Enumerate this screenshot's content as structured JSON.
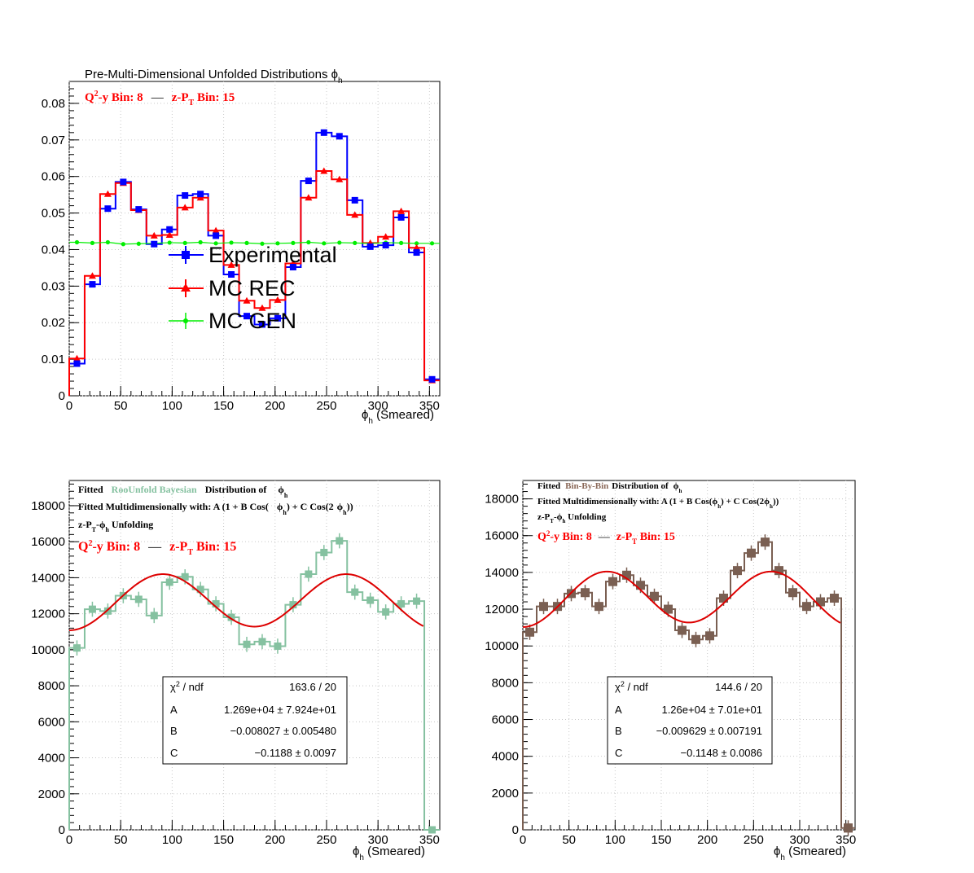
{
  "chart_data": [
    {
      "type": "line",
      "title": "Pre-Multi-Dimensional Unfolded Distributions ϕ",
      "title_sub": "h",
      "annotation": {
        "q2y": "Q",
        "q2y_sup": "2",
        "q2y_rest": "-y Bin: 8",
        "dash": "—",
        "zpt": "z-P",
        "zpt_sub": "T",
        "zpt_rest": " Bin: 15"
      },
      "xlabel": "ϕ",
      "xlabel_sub": "h",
      "xlabel_rest": " (Smeared)",
      "xlim": [
        0,
        360
      ],
      "ylim": [
        0,
        0.086
      ],
      "xticks": [
        "0",
        "50",
        "100",
        "150",
        "200",
        "250",
        "300",
        "350"
      ],
      "yticks": [
        "0",
        "0.01",
        "0.02",
        "0.03",
        "0.04",
        "0.05",
        "0.06",
        "0.07",
        "0.08"
      ],
      "ytick_values": [
        0,
        0.01,
        0.02,
        0.03,
        0.04,
        0.05,
        0.06,
        0.07,
        0.08
      ],
      "bin_edges": [
        0,
        15,
        30,
        45,
        60,
        75,
        90,
        105,
        120,
        135,
        150,
        165,
        180,
        195,
        210,
        225,
        240,
        255,
        270,
        285,
        300,
        315,
        330,
        345,
        360
      ],
      "series": [
        {
          "name": "Experimental",
          "color": "#0000ff",
          "marker": "square",
          "values": [
            0.0088,
            0.0305,
            0.0512,
            0.0585,
            0.051,
            0.0415,
            0.0455,
            0.0548,
            0.0552,
            0.0438,
            0.0332,
            0.0218,
            0.0195,
            0.0212,
            0.0352,
            0.0588,
            0.072,
            0.071,
            0.0535,
            0.0408,
            0.0412,
            0.0488,
            0.0392,
            0.0045
          ]
        },
        {
          "name": "MC REC",
          "color": "#ff0000",
          "marker": "triangle",
          "values": [
            0.0102,
            0.0328,
            0.0552,
            0.0582,
            0.0508,
            0.0438,
            0.044,
            0.0515,
            0.0542,
            0.0452,
            0.0358,
            0.026,
            0.024,
            0.0262,
            0.0362,
            0.0542,
            0.0615,
            0.0592,
            0.0495,
            0.0418,
            0.0435,
            0.0505,
            0.0405,
            0.0042
          ]
        },
        {
          "name": "MC GEN",
          "color": "#00ee00",
          "marker": "circle",
          "values": [
            0.042,
            0.0418,
            0.042,
            0.0415,
            0.0416,
            0.0417,
            0.0419,
            0.0418,
            0.042,
            0.0417,
            0.0419,
            0.0418,
            0.0416,
            0.0417,
            0.0418,
            0.042,
            0.0417,
            0.0419,
            0.0418,
            0.0417,
            0.0419,
            0.0418,
            0.0417,
            0.0417
          ]
        }
      ]
    },
    {
      "type": "line",
      "title_lines": {
        "l1a": "Fitted",
        "l1b": "RooUnfold Bayesian",
        "l1c": "Distribution of",
        "l1d": "ϕ",
        "l1d_sub": "h",
        "l2a": "Fitted Multidimensionally with: A (1 + B Cos(",
        "l2b": "ϕ",
        "l2b_sub": "h",
        "l2c": ") + C Cos(2",
        "l2d": "ϕ",
        "l2d_sub": "h",
        "l2e": "))",
        "l3a": "z-P",
        "l3a_sub": "T",
        "l3b": "-ϕ",
        "l3b_sub": "h",
        "l3c": " Unfolding"
      },
      "method_color": "#85c1a0",
      "annotation": {
        "q2y": "Q",
        "q2y_sup": "2",
        "q2y_rest": "-y Bin: 8",
        "dash": "—",
        "zpt": "z-P",
        "zpt_sub": "T",
        "zpt_rest": " Bin: 15"
      },
      "xlabel": "ϕ",
      "xlabel_sub": "h",
      "xlabel_rest": " (Smeared)",
      "xlim": [
        0,
        360
      ],
      "ylim": [
        0,
        19400
      ],
      "xticks": [
        "0",
        "50",
        "100",
        "150",
        "200",
        "250",
        "300",
        "350"
      ],
      "yticks": [
        "0",
        "2000",
        "4000",
        "6000",
        "8000",
        "10000",
        "12000",
        "14000",
        "16000",
        "18000"
      ],
      "ytick_values": [
        0,
        2000,
        4000,
        6000,
        8000,
        10000,
        12000,
        14000,
        16000,
        18000
      ],
      "bin_edges": [
        0,
        15,
        30,
        45,
        60,
        75,
        90,
        105,
        120,
        135,
        150,
        165,
        180,
        195,
        210,
        225,
        240,
        255,
        270,
        285,
        300,
        315,
        330,
        345,
        360
      ],
      "hist": {
        "color": "#85c1a0",
        "values": [
          10100,
          12250,
          12150,
          13000,
          12800,
          11900,
          13750,
          14050,
          13350,
          12550,
          11800,
          10300,
          10450,
          10200,
          12500,
          14200,
          15400,
          16050,
          13200,
          12750,
          12100,
          12550,
          12700,
          0
        ]
      },
      "fit": {
        "color": "#dd0000",
        "A": 12690,
        "B": -0.008027,
        "C": -0.1188,
        "x_range": [
          0,
          345
        ]
      },
      "stats": {
        "chi2_label": "χ",
        "chi2_sup": "2",
        "chi2_rest": " / ndf",
        "chi2_value": "163.6 / 20",
        "rows": [
          {
            "name": "A",
            "value": "1.269e+04 ± 7.924e+01"
          },
          {
            "name": "B",
            "value": "−0.008027 ± 0.005480"
          },
          {
            "name": "C",
            "value": "−0.1188 ± 0.0097"
          }
        ]
      }
    },
    {
      "type": "line",
      "title_lines": {
        "l1a": "Fitted",
        "l1b": "Bin-By-Bin",
        "l1c": "Distribution of",
        "l1d": "ϕ",
        "l1d_sub": "h",
        "l2a": "Fitted Multidimensionally with: A (1 + B Cos(",
        "l2b": "ϕ",
        "l2b_sub": "h",
        "l2c": ") + C Cos(2",
        "l2d": "ϕ",
        "l2d_sub": "h",
        "l2e": "))",
        "l3a": "z-P",
        "l3a_sub": "T",
        "l3b": "-ϕ",
        "l3b_sub": "h",
        "l3c": " Unfolding"
      },
      "method_color": "#8b6a5a",
      "annotation": {
        "q2y": "Q",
        "q2y_sup": "2",
        "q2y_rest": "-y Bin: 8",
        "dash": "—",
        "zpt": "z-P",
        "zpt_sub": "T",
        "zpt_rest": " Bin: 15"
      },
      "xlabel": "ϕ",
      "xlabel_sub": "h",
      "xlabel_rest": " (Smeared)",
      "xlim": [
        0,
        360
      ],
      "ylim": [
        0,
        19000
      ],
      "xticks": [
        "0",
        "50",
        "100",
        "150",
        "200",
        "250",
        "300",
        "350"
      ],
      "yticks": [
        "0",
        "2000",
        "4000",
        "6000",
        "8000",
        "10000",
        "12000",
        "14000",
        "16000",
        "18000"
      ],
      "ytick_values": [
        0,
        2000,
        4000,
        6000,
        8000,
        10000,
        12000,
        14000,
        16000,
        18000
      ],
      "bin_edges": [
        0,
        15,
        30,
        45,
        60,
        75,
        90,
        105,
        120,
        135,
        150,
        165,
        180,
        195,
        210,
        225,
        240,
        255,
        270,
        285,
        300,
        315,
        330,
        345,
        360
      ],
      "hist": {
        "color": "#7a5f52",
        "values": [
          10750,
          12150,
          12150,
          12850,
          12900,
          12150,
          13500,
          13850,
          13300,
          12700,
          12000,
          10850,
          10350,
          10550,
          12600,
          14100,
          15050,
          15650,
          14100,
          12900,
          12150,
          12400,
          12600,
          100
        ]
      },
      "fit": {
        "color": "#dd0000",
        "A": 12600,
        "B": -0.009629,
        "C": -0.1148,
        "x_range": [
          0,
          345
        ]
      },
      "stats": {
        "chi2_label": "χ",
        "chi2_sup": "2",
        "chi2_rest": " / ndf",
        "chi2_value": "144.6 / 20",
        "rows": [
          {
            "name": "A",
            "value": "1.26e+04  ± 7.01e+01"
          },
          {
            "name": "B",
            "value": "−0.009629  ± 0.007191"
          },
          {
            "name": "C",
            "value": "−0.1148  ± 0.0086"
          }
        ]
      }
    }
  ]
}
